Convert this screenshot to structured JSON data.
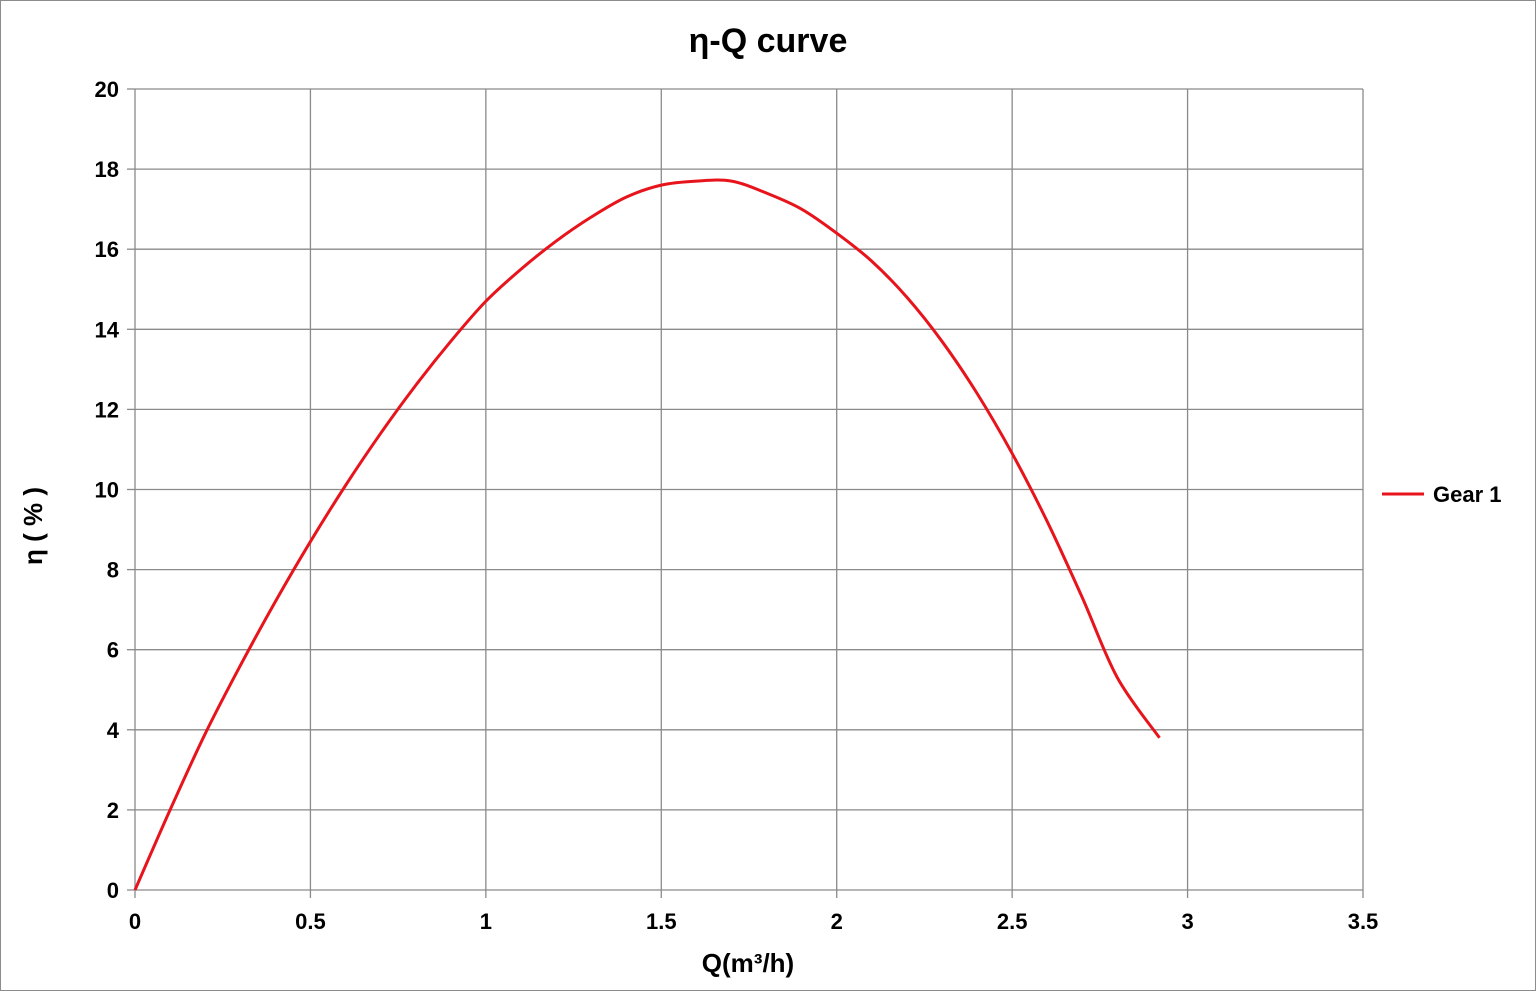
{
  "chart_data": {
    "type": "line",
    "title": "η-Q  curve",
    "xlabel": "Q(m³/h)",
    "ylabel": "η ( % )",
    "xlim": [
      0,
      3.5
    ],
    "ylim": [
      0,
      20
    ],
    "x_ticks": [
      "0",
      "0.5",
      "1",
      "1.5",
      "2",
      "2.5",
      "3",
      "3.5"
    ],
    "y_ticks": [
      "0",
      "2",
      "4",
      "6",
      "8",
      "10",
      "12",
      "14",
      "16",
      "18",
      "20"
    ],
    "grid": true,
    "legend_position": "right",
    "series": [
      {
        "name": "Gear 1",
        "color": "#e8141c",
        "x": [
          0.0,
          0.1,
          0.2,
          0.3,
          0.4,
          0.5,
          0.6,
          0.7,
          0.8,
          0.9,
          1.0,
          1.1,
          1.2,
          1.3,
          1.4,
          1.5,
          1.6,
          1.7,
          1.8,
          1.9,
          2.0,
          2.1,
          2.2,
          2.3,
          2.4,
          2.5,
          2.6,
          2.7,
          2.8,
          2.92
        ],
        "y": [
          0.0,
          2.0,
          3.9,
          5.6,
          7.2,
          8.7,
          10.1,
          11.4,
          12.6,
          13.7,
          14.7,
          15.5,
          16.2,
          16.8,
          17.3,
          17.6,
          17.7,
          17.7,
          17.4,
          17.0,
          16.4,
          15.7,
          14.8,
          13.7,
          12.4,
          10.9,
          9.2,
          7.3,
          5.3,
          3.8
        ]
      }
    ]
  }
}
